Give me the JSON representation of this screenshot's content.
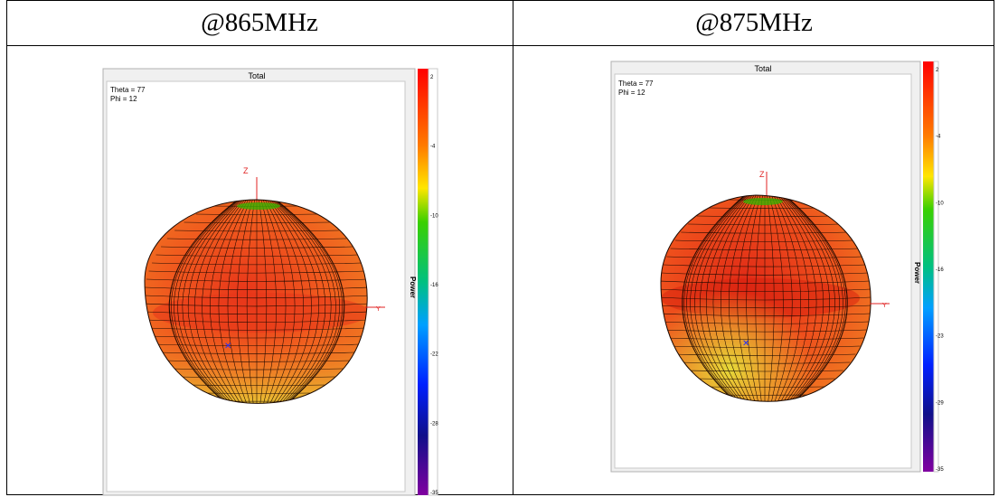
{
  "table": {
    "col1_header": "@865MHz",
    "col2_header": "@875MHz"
  },
  "plots": [
    {
      "title": "Total",
      "theta_text": "Theta = 77",
      "phi_text": "Phi = 12",
      "z_axis": "Z",
      "y_axis": "Y",
      "colorbar_label": "Power",
      "ticks": [
        "2",
        "-4",
        "-10",
        "-16",
        "-22",
        "-28",
        "-35"
      ]
    },
    {
      "title": "Total",
      "theta_text": "Theta = 77",
      "phi_text": "Phi = 12",
      "z_axis": "Z",
      "y_axis": "Y",
      "colorbar_label": "Power",
      "ticks": [
        "2",
        "-4",
        "-10",
        "-16",
        "-23",
        "-29",
        "-35"
      ]
    }
  ],
  "colors": {
    "pattern_main": "#f05a1e",
    "pattern_warm": "#e8361a",
    "pattern_low": "#e6e03a",
    "grid_line": "#1a0800",
    "axis_red": "#e02020",
    "marker_blue": "#2030ff"
  }
}
